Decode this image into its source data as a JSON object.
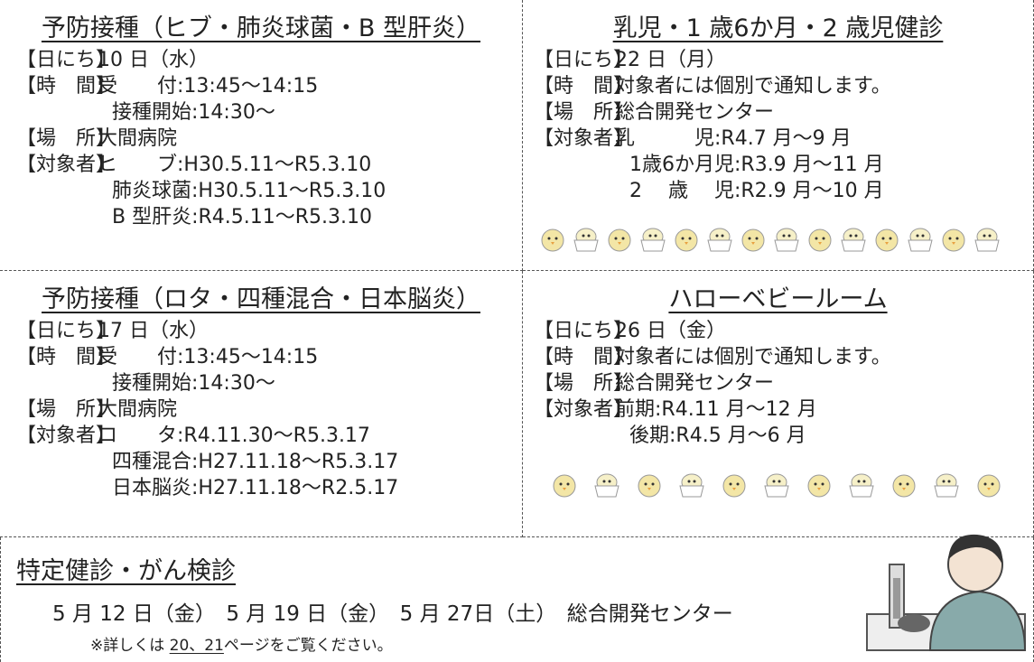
{
  "sections": [
    {
      "title": "予防接種（ヒブ・肺炎球菌・B 型肝炎）",
      "lines": [
        {
          "label": "【日にち】",
          "value": "10 日（水）"
        },
        {
          "label": "【時　間】",
          "value": "受　　付:13:45～14:15"
        },
        {
          "value": "接種開始:14:30～"
        },
        {
          "label": "【場　所】",
          "value": "大間病院"
        },
        {
          "label": "【対象者】",
          "value": "ヒ　　ブ:H30.5.11～R5.3.10"
        },
        {
          "value": "肺炎球菌:H30.5.11～R5.3.10"
        },
        {
          "value": "B 型肝炎:R4.5.11～R5.3.10"
        }
      ]
    },
    {
      "title": "乳児・1 歳6か月・2 歳児健診",
      "lines": [
        {
          "label": "【日にち】",
          "value": "22 日（月）"
        },
        {
          "label": "【時　間】",
          "value": "対象者には個別で通知します。"
        },
        {
          "label": "【場　所】",
          "value": "総合開発センター"
        },
        {
          "label": "【対象者】",
          "value": "乳　　　児:R4.7 月～9 月"
        },
        {
          "value": "1歳6か月児:R3.9 月～11 月"
        },
        {
          "value": "2　 歳　 児:R2.9 月～10 月"
        }
      ]
    },
    {
      "title": "予防接種（ロタ・四種混合・日本脳炎）",
      "lines": [
        {
          "label": "【日にち】",
          "value": "17 日（水）"
        },
        {
          "label": "【時　間】",
          "value": "受　　付:13:45～14:15"
        },
        {
          "value": "接種開始:14:30～"
        },
        {
          "label": "【場　所】",
          "value": "大間病院"
        },
        {
          "label": "【対象者】",
          "value": "ロ　　タ:R4.11.30～R5.3.17"
        },
        {
          "value": "四種混合:H27.11.18～R5.3.17"
        },
        {
          "value": "日本脳炎:H27.11.18～R2.5.17"
        }
      ]
    },
    {
      "title": "ハローベビールーム",
      "lines": [
        {
          "label": "【日にち】",
          "value": "26 日（金）"
        },
        {
          "label": "【時　間】",
          "value": "対象者には個別で通知します。"
        },
        {
          "label": "【場　所】",
          "value": "総合開発センター"
        },
        {
          "label": "【対象者】",
          "value": "前期:R4.11 月～12 月"
        },
        {
          "value": "後期:R4.5 月～6 月"
        }
      ]
    }
  ],
  "bottom": {
    "title": "特定健診・がん検診",
    "dates": "5 月 12 日（金）　5 月 19 日（金）　5 月 27日（土）　総合開発センター",
    "note_prefix": "※詳しくは ",
    "note_link": "20、21",
    "note_suffix": "ページをご覧ください。"
  }
}
